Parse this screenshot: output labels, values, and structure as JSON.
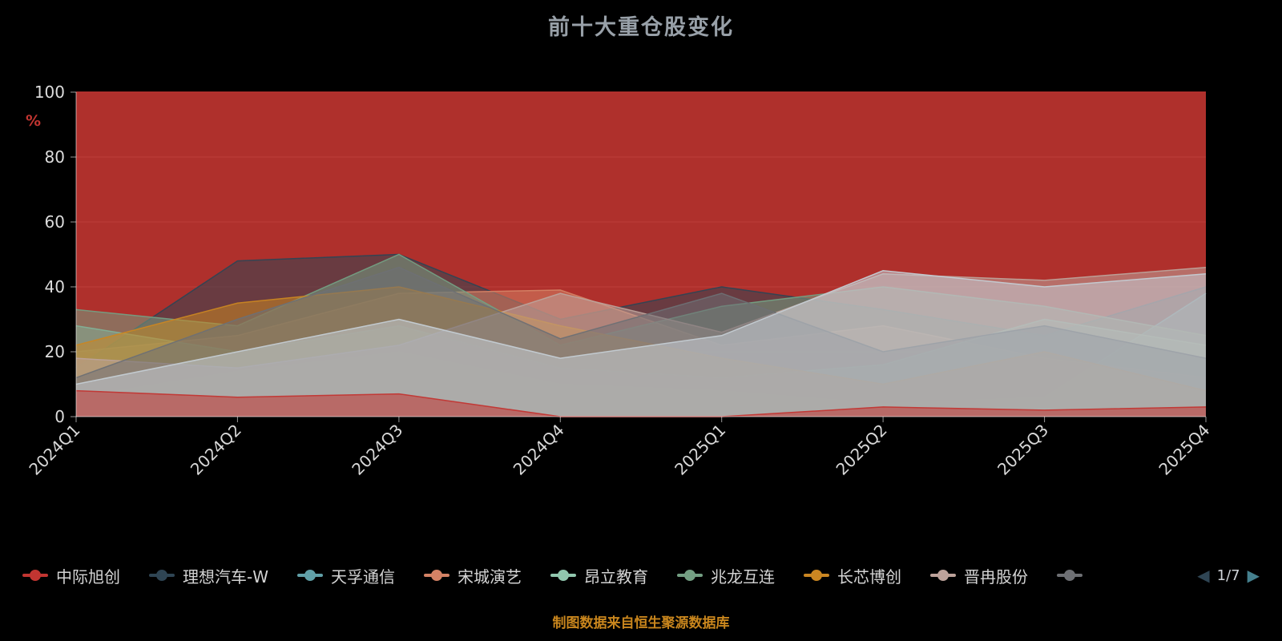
{
  "title": "前十大重仓股变化",
  "footer": "制图数据来自恒生聚源数据库",
  "y_axis": {
    "unit": "%",
    "unit_color": "#c23531"
  },
  "pagination": {
    "info": "1/7",
    "prev_color": "#2f4554",
    "next_color": "#45808e"
  },
  "legend": {
    "items": [
      {
        "label": "中际旭创",
        "color": "#c23531"
      },
      {
        "label": "理想汽车-W",
        "color": "#2f4554"
      },
      {
        "label": "天孚通信",
        "color": "#61a0a8"
      },
      {
        "label": "宋城演艺",
        "color": "#d48265"
      },
      {
        "label": "昂立教育",
        "color": "#91c7ae"
      },
      {
        "label": "兆龙互连",
        "color": "#749f83"
      },
      {
        "label": "长芯博创",
        "color": "#ca8622"
      },
      {
        "label": "晋冉股份",
        "color": "#bda29a"
      },
      {
        "label": "",
        "color": "#6e7074"
      }
    ]
  },
  "chart_data": {
    "type": "area",
    "overlap": true,
    "stacked": false,
    "title": "前十大重仓股变化",
    "xlabel": "",
    "ylabel": "%",
    "ylim": [
      0,
      100
    ],
    "yticks": [
      0,
      20,
      40,
      60,
      80,
      100
    ],
    "grid": true,
    "background": "#000000",
    "legend_position": "bottom",
    "x": [
      "2024Q1",
      "2024Q2",
      "2024Q3",
      "2024Q4",
      "2025Q1",
      "2025Q2",
      "2025Q3",
      "2025Q4"
    ],
    "series": [
      {
        "name": "中际旭创",
        "color": "#c23531",
        "values": [
          100,
          100,
          100,
          100,
          100,
          100,
          100,
          100
        ]
      },
      {
        "name": "理想汽车-W",
        "color": "#2f4554",
        "values": [
          15,
          48,
          50,
          30,
          40,
          33,
          25,
          40
        ]
      },
      {
        "name": "天孚通信",
        "color": "#61a0a8",
        "values": [
          6,
          14,
          20,
          10,
          8,
          4,
          6,
          38
        ]
      },
      {
        "name": "宋城演艺",
        "color": "#d48265",
        "values": [
          20,
          25,
          38,
          39,
          22,
          28,
          18,
          12
        ]
      },
      {
        "name": "昂立教育",
        "color": "#91c7ae",
        "values": [
          28,
          20,
          28,
          15,
          12,
          16,
          30,
          22
        ]
      },
      {
        "name": "兆龙互连",
        "color": "#749f83",
        "values": [
          33,
          28,
          50,
          22,
          34,
          40,
          34,
          25
        ]
      },
      {
        "name": "长芯博创",
        "color": "#ca8622",
        "values": [
          22,
          35,
          40,
          28,
          18,
          10,
          20,
          8
        ]
      },
      {
        "name": "晋冉股份",
        "color": "#bda29a",
        "values": [
          18,
          15,
          22,
          38,
          26,
          44,
          42,
          46
        ]
      },
      {
        "name": "",
        "color": "#6e7074",
        "values": [
          12,
          30,
          46,
          24,
          38,
          20,
          28,
          18
        ]
      },
      {
        "name": "",
        "color": "#c4ccd3",
        "values": [
          10,
          20,
          30,
          18,
          25,
          45,
          40,
          44
        ]
      },
      {
        "name": "",
        "color": "#c23531",
        "values": [
          8,
          6,
          7,
          0,
          0,
          3,
          2,
          3
        ]
      }
    ]
  }
}
